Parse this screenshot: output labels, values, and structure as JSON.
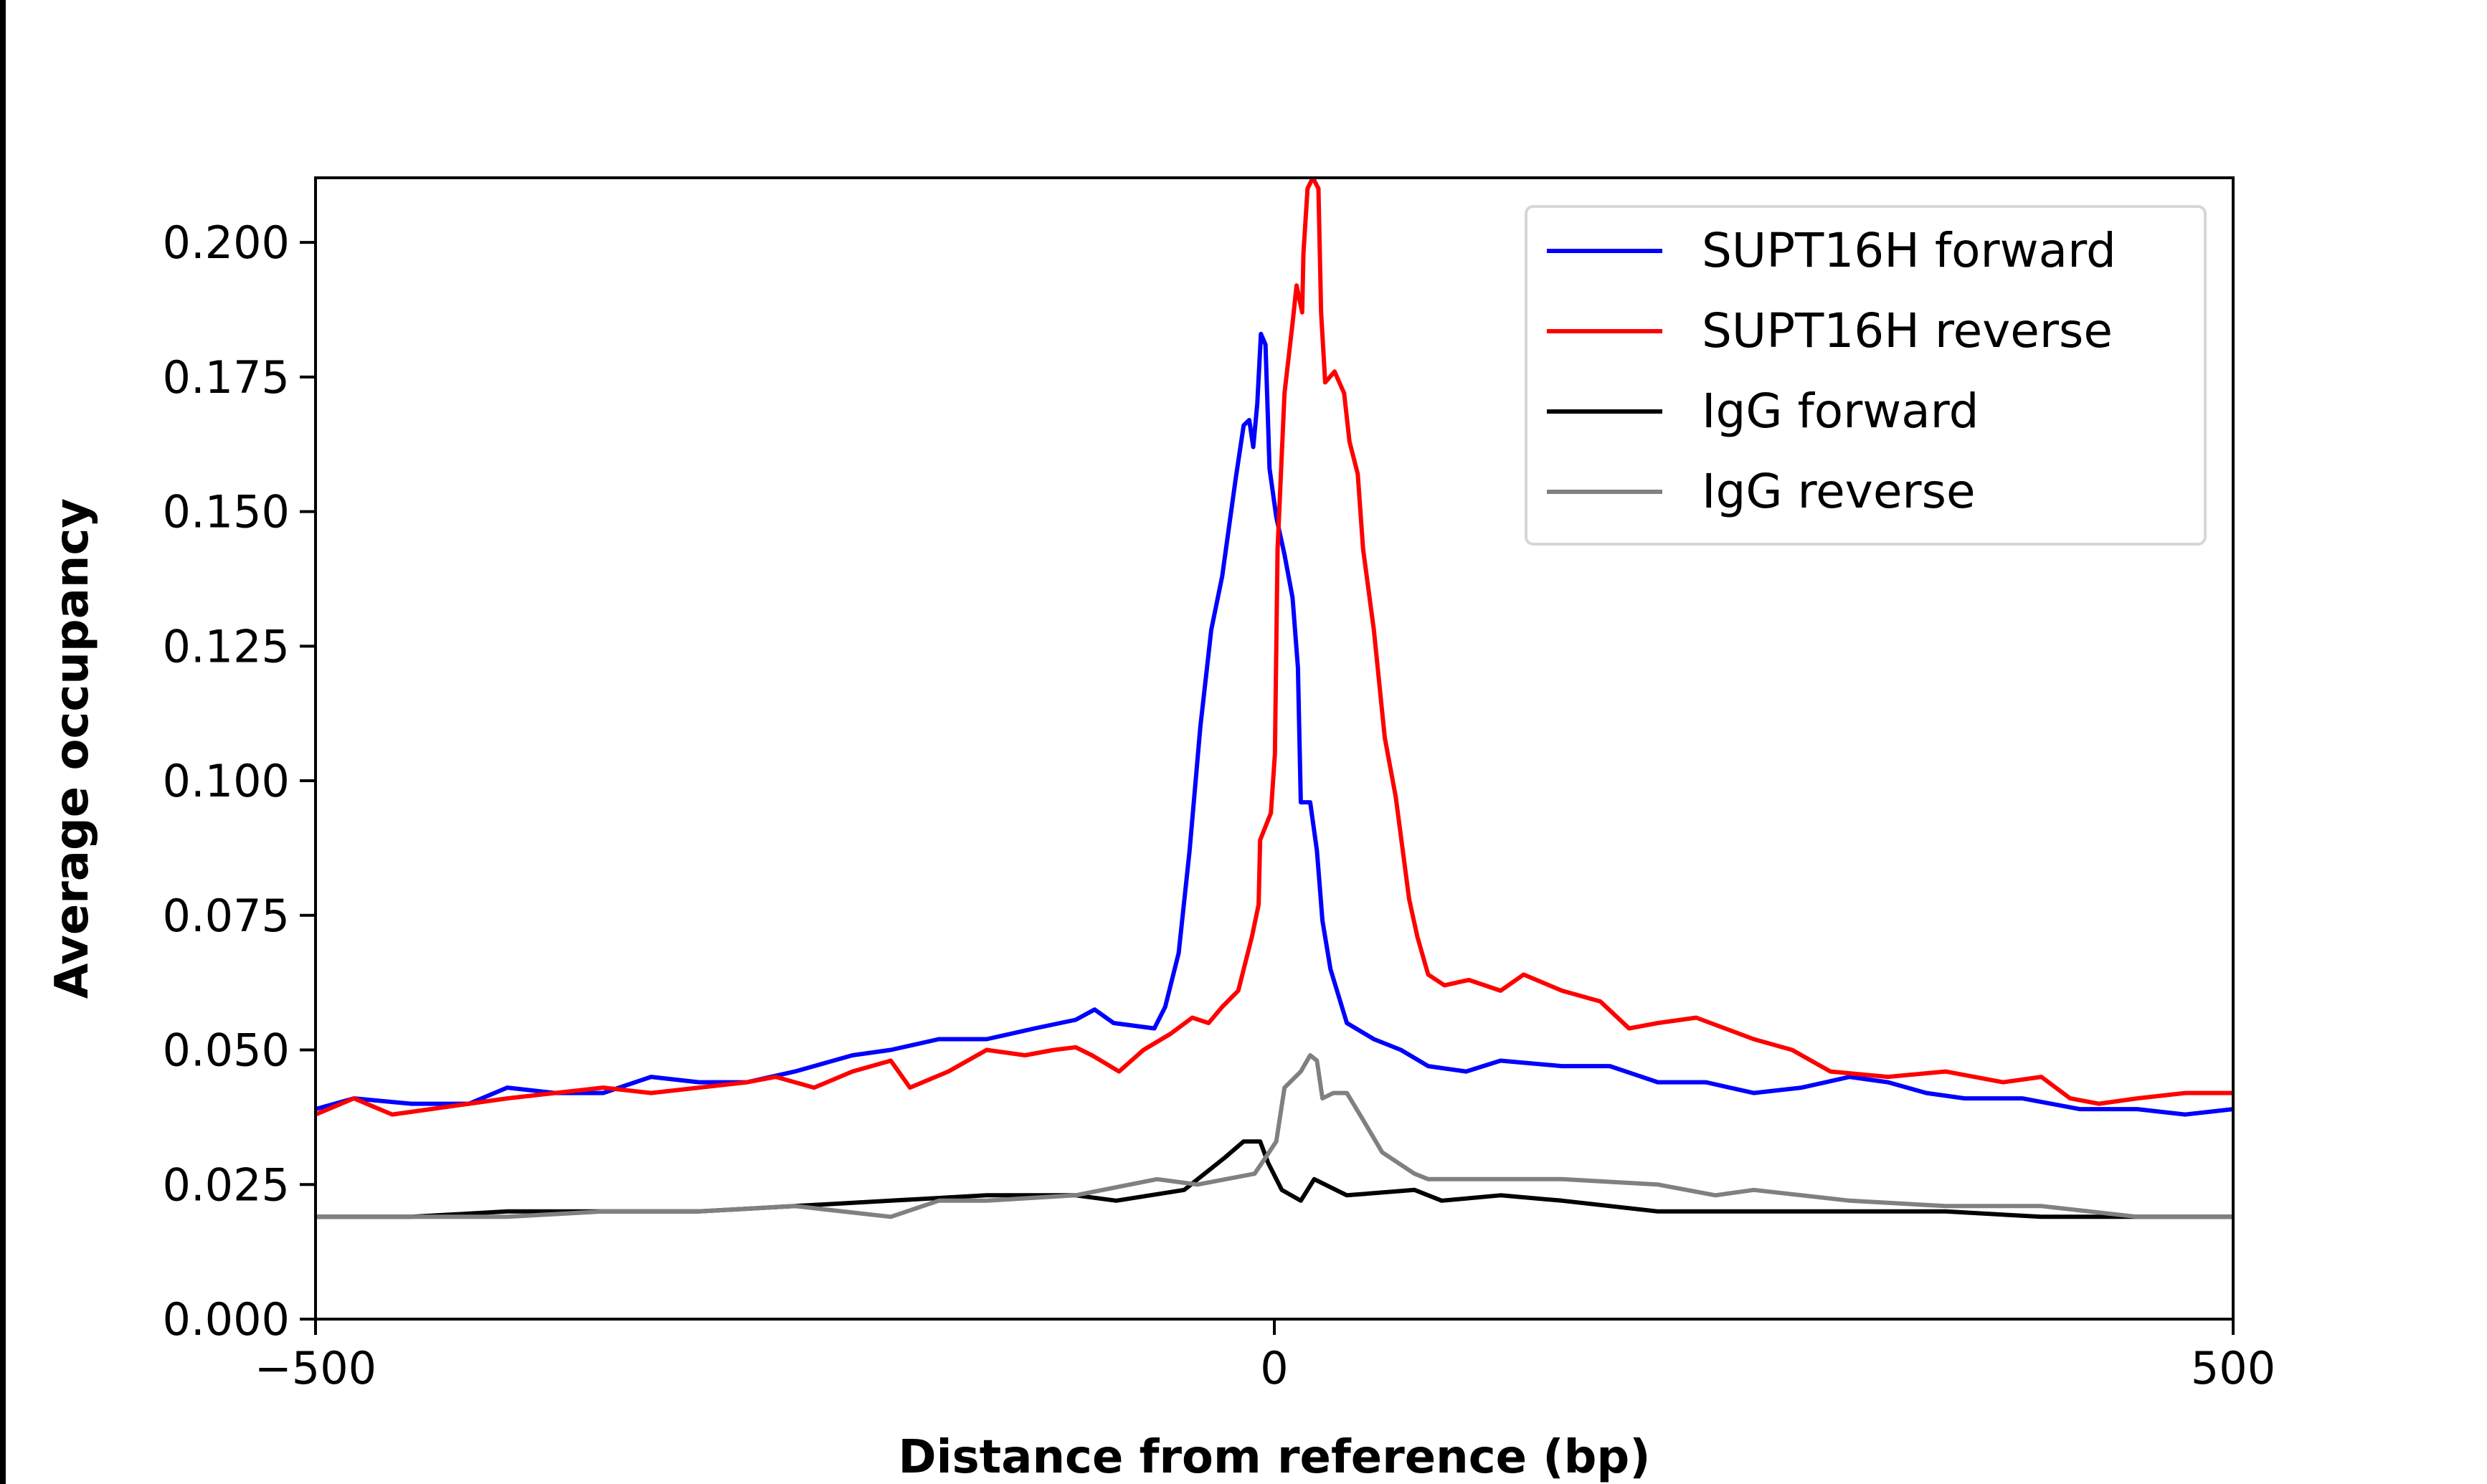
{
  "chart_data": {
    "type": "line",
    "title": "",
    "xlabel": "Distance from reference (bp)",
    "ylabel": "Average occupancy",
    "xlim": [
      -500,
      500
    ],
    "ylim": [
      0,
      0.212
    ],
    "xticks": [
      -500,
      0,
      500
    ],
    "xtick_labels": [
      "−500",
      "0",
      "500"
    ],
    "yticks": [
      0,
      0.025,
      0.05,
      0.075,
      0.1,
      0.125,
      0.15,
      0.175,
      0.2
    ],
    "ytick_labels": [
      "0.000",
      "0.025",
      "0.050",
      "0.075",
      "0.100",
      "0.125",
      "0.150",
      "0.175",
      "0.200"
    ],
    "grid": false,
    "legend_position": "top-right",
    "series": [
      {
        "name": "SUPT16H forward",
        "color": "#0000ff",
        "x": [
          -500,
          -480,
          -450,
          -420,
          -400,
          -375,
          -350,
          -325,
          -300,
          -275,
          -250,
          -220,
          -200,
          -175,
          -150,
          -125,
          -103.6,
          -93.7,
          -83.8,
          -62.6,
          -56.9,
          -49.9,
          -44.2,
          -38.6,
          -32.9,
          -27.2,
          -20.2,
          -16,
          -13.1,
          -11,
          -8.9,
          -7,
          -4.6,
          -2.5,
          1,
          5.3,
          9.5,
          12.3,
          13.8,
          18.7,
          22.2,
          25.1,
          29.3,
          37.8,
          51.9,
          66,
          80.2,
          100,
          118,
          150,
          175,
          200,
          225,
          250,
          275,
          300,
          320,
          340,
          360,
          390,
          420,
          450,
          475,
          500
        ],
        "y": [
          0.039,
          0.041,
          0.04,
          0.04,
          0.043,
          0.042,
          0.042,
          0.045,
          0.044,
          0.044,
          0.046,
          0.049,
          0.05,
          0.052,
          0.052,
          0.054,
          0.0556,
          0.0575,
          0.055,
          0.054,
          0.058,
          0.068,
          0.087,
          0.11,
          0.128,
          0.138,
          0.156,
          0.166,
          0.167,
          0.162,
          0.17,
          0.183,
          0.181,
          0.158,
          0.149,
          0.142,
          0.134,
          0.121,
          0.096,
          0.096,
          0.087,
          0.074,
          0.065,
          0.055,
          0.052,
          0.05,
          0.047,
          0.046,
          0.048,
          0.047,
          0.047,
          0.044,
          0.044,
          0.042,
          0.043,
          0.045,
          0.044,
          0.042,
          0.041,
          0.041,
          0.039,
          0.039,
          0.038,
          0.039
        ]
      },
      {
        "name": "SUPT16H reverse",
        "color": "#ff0000",
        "x": [
          -500,
          -480,
          -460,
          -440,
          -420,
          -400,
          -375,
          -350,
          -325,
          -300,
          -275,
          -260,
          -240,
          -220,
          -200,
          -190,
          -170,
          -150,
          -130,
          -115,
          -103.6,
          -95.1,
          -81,
          -68.2,
          -54.1,
          -42.8,
          -34.3,
          -27.2,
          -18.8,
          -11.7,
          -8.2,
          -7.4,
          -1.8,
          0.3,
          1.7,
          5.3,
          9.5,
          11.6,
          14.5,
          15.2,
          17.3,
          20.1,
          23,
          24.4,
          26.5,
          31.4,
          36.4,
          39.2,
          43.5,
          46.3,
          51.9,
          57.6,
          63.3,
          70.3,
          74.6,
          80.2,
          88.7,
          101.4,
          118,
          130,
          150,
          170,
          185,
          200,
          220,
          235,
          250,
          270,
          290,
          320,
          350,
          380,
          400,
          415,
          430,
          450,
          475,
          500
        ],
        "y": [
          0.038,
          0.041,
          0.038,
          0.039,
          0.04,
          0.041,
          0.042,
          0.043,
          0.042,
          0.043,
          0.044,
          0.045,
          0.043,
          0.046,
          0.048,
          0.043,
          0.046,
          0.05,
          0.049,
          0.05,
          0.0505,
          0.049,
          0.046,
          0.05,
          0.053,
          0.056,
          0.055,
          0.058,
          0.061,
          0.071,
          0.077,
          0.089,
          0.094,
          0.105,
          0.143,
          0.172,
          0.185,
          0.192,
          0.187,
          0.198,
          0.21,
          0.212,
          0.21,
          0.187,
          0.174,
          0.176,
          0.172,
          0.163,
          0.157,
          0.143,
          0.128,
          0.108,
          0.097,
          0.078,
          0.071,
          0.064,
          0.062,
          0.063,
          0.061,
          0.064,
          0.061,
          0.059,
          0.054,
          0.055,
          0.056,
          0.054,
          0.052,
          0.05,
          0.046,
          0.045,
          0.046,
          0.044,
          0.045,
          0.041,
          0.04,
          0.041,
          0.042,
          0.042
        ]
      },
      {
        "name": "IgG forward",
        "color": "#000000",
        "x": [
          -500,
          -450,
          -400,
          -350,
          -300,
          -250,
          -200,
          -150,
          -103.6,
          -82.4,
          -47,
          -25.8,
          -16,
          -7.4,
          -3.2,
          3.9,
          13.8,
          20.8,
          37.8,
          73.1,
          87.3,
          118,
          150,
          200,
          250,
          300,
          350,
          400,
          450,
          500
        ],
        "y": [
          0.019,
          0.019,
          0.02,
          0.02,
          0.02,
          0.021,
          0.022,
          0.023,
          0.023,
          0.022,
          0.024,
          0.03,
          0.033,
          0.033,
          0.029,
          0.024,
          0.022,
          0.026,
          0.023,
          0.024,
          0.022,
          0.023,
          0.022,
          0.02,
          0.02,
          0.02,
          0.02,
          0.019,
          0.019,
          0.019
        ]
      },
      {
        "name": "IgG reverse",
        "color": "#808080",
        "x": [
          -500,
          -450,
          -400,
          -350,
          -300,
          -250,
          -200,
          -175,
          -150,
          -103.6,
          -61.2,
          -40,
          -10.3,
          -4.6,
          1,
          5.3,
          13.8,
          18.7,
          22.2,
          25.1,
          30.8,
          37.8,
          46.3,
          56.2,
          73.1,
          80.2,
          118,
          150,
          200,
          230,
          250,
          300,
          350,
          400,
          450,
          500
        ],
        "y": [
          0.019,
          0.019,
          0.019,
          0.02,
          0.02,
          0.021,
          0.019,
          0.022,
          0.022,
          0.023,
          0.026,
          0.025,
          0.027,
          0.03,
          0.033,
          0.043,
          0.046,
          0.049,
          0.048,
          0.041,
          0.042,
          0.042,
          0.037,
          0.031,
          0.027,
          0.026,
          0.026,
          0.026,
          0.025,
          0.023,
          0.024,
          0.022,
          0.021,
          0.021,
          0.019,
          0.019
        ]
      }
    ]
  }
}
